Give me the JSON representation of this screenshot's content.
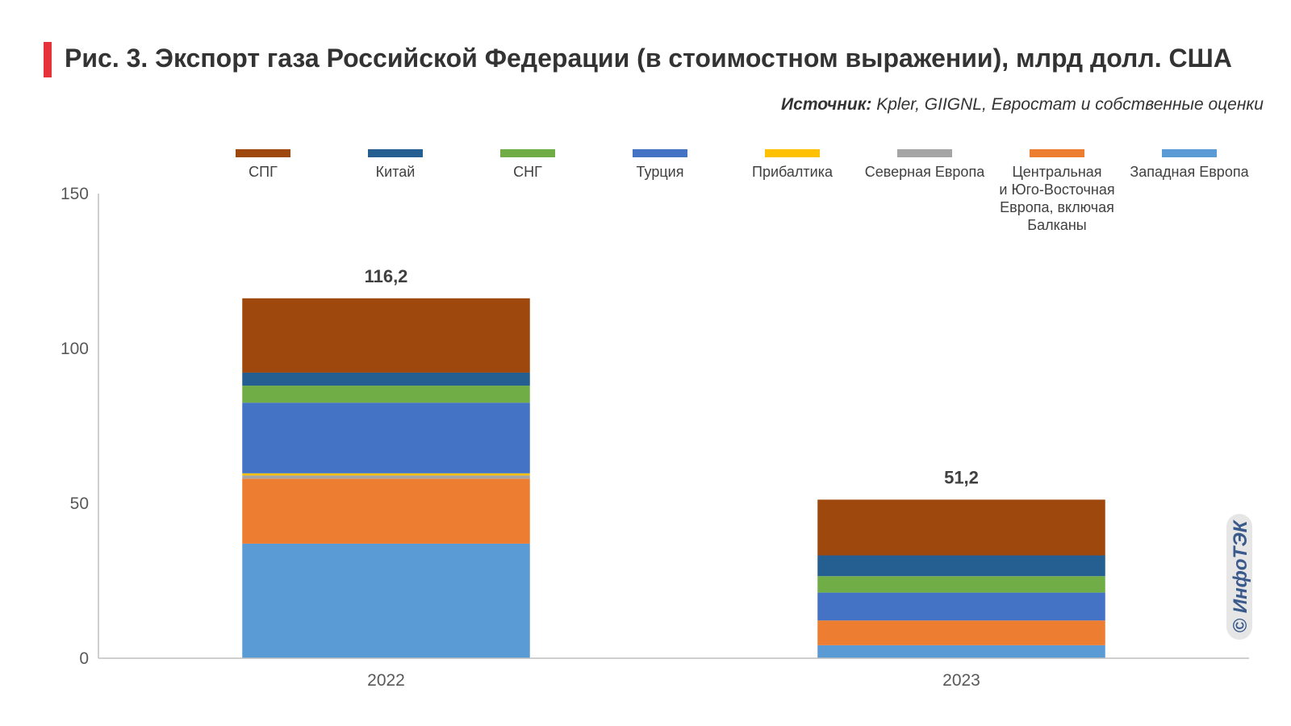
{
  "header": {
    "title": "Рис. 3. Экспорт газа Российской Федерации (в стоимостном выражении), млрд долл. США",
    "source_label": "Источник:",
    "source_text": " Kpler, GIIGNL, Евростат и собственные оценки"
  },
  "watermark": "© ИнфоТЭК",
  "chart_data": {
    "type": "bar",
    "stacked": true,
    "categories": [
      "2022",
      "2023"
    ],
    "totals": [
      "116,2",
      "51,2"
    ],
    "ylim": [
      0,
      150
    ],
    "yticks": [
      0,
      50,
      100,
      150
    ],
    "series": [
      {
        "name": "Западная Европа",
        "color": "#5b9bd5",
        "values": [
          37.0,
          4.2
        ]
      },
      {
        "name": "Центральная и Юго-Восточная Европа, включая Балканы",
        "color": "#ed7d31",
        "values": [
          21.0,
          8.0
        ]
      },
      {
        "name": "Северная Европа",
        "color": "#a5a5a5",
        "values": [
          1.0,
          0.0
        ]
      },
      {
        "name": "Прибалтика",
        "color": "#ffc000",
        "values": [
          0.7,
          0.0
        ]
      },
      {
        "name": "Турция",
        "color": "#4472c4",
        "values": [
          22.8,
          9.0
        ]
      },
      {
        "name": "СНГ",
        "color": "#70ad47",
        "values": [
          5.5,
          5.3
        ]
      },
      {
        "name": "Китай",
        "color": "#255e91",
        "values": [
          4.2,
          6.7
        ]
      },
      {
        "name": "СПГ",
        "color": "#9e480e",
        "values": [
          24.0,
          18.0
        ]
      }
    ],
    "legend_order": [
      "СПГ",
      "Китай",
      "СНГ",
      "Турция",
      "Прибалтика",
      "Северная Европа",
      "Центральная и Юго-Восточная Европа, включая Балканы",
      "Западная Европа"
    ],
    "legend_lines": {
      "Центральная и Юго-Восточная Европа, включая Балканы": [
        "Центральная",
        "и Юго-Восточная",
        "Европа, включая",
        "Балканы"
      ]
    },
    "legend_position": "top"
  }
}
